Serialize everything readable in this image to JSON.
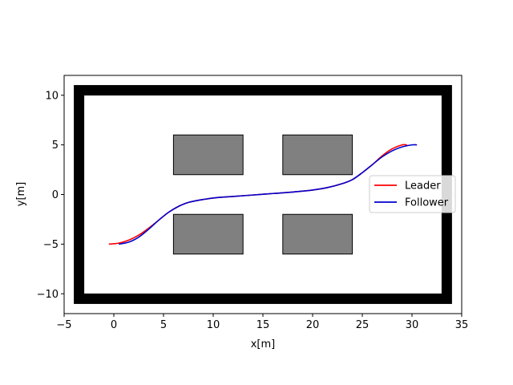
{
  "chart_data": {
    "type": "line",
    "title": "",
    "xlabel": "x[m]",
    "ylabel": "y[m]",
    "xlim": [
      -5,
      35
    ],
    "ylim": [
      -12,
      12
    ],
    "x_ticks": [
      -5,
      0,
      5,
      10,
      15,
      20,
      25,
      30,
      35
    ],
    "y_ticks": [
      -10,
      -5,
      0,
      5,
      10
    ],
    "x_tick_labels": [
      "−5",
      "0",
      "5",
      "10",
      "15",
      "20",
      "25",
      "30",
      "35"
    ],
    "y_tick_labels": [
      "−10",
      "−5",
      "0",
      "5",
      "10"
    ],
    "grid": false,
    "legend_position": "center-right",
    "boundary": {
      "x": [
        -3.5,
        33.5
      ],
      "y": [
        -10.5,
        10.5
      ],
      "color": "#000000"
    },
    "obstacles": [
      {
        "x": [
          6,
          13
        ],
        "y": [
          2,
          6
        ],
        "color": "#808080"
      },
      {
        "x": [
          17,
          24
        ],
        "y": [
          2,
          6
        ],
        "color": "#808080"
      },
      {
        "x": [
          6,
          13
        ],
        "y": [
          -6,
          -2
        ],
        "color": "#808080"
      },
      {
        "x": [
          17,
          24
        ],
        "y": [
          -6,
          -2
        ],
        "color": "#808080"
      }
    ],
    "series": [
      {
        "name": "Leader",
        "color": "#ff0000",
        "x": [
          -0.5,
          0.5,
          1.5,
          2.5,
          3.5,
          4.5,
          5.5,
          6.5,
          7.5,
          9,
          10.5,
          12,
          14,
          16,
          18,
          20,
          21.5,
          23,
          24,
          25,
          26,
          27,
          28,
          29,
          29.5
        ],
        "y": [
          -5,
          -4.9,
          -4.6,
          -4.1,
          -3.4,
          -2.6,
          -1.8,
          -1.2,
          -0.8,
          -0.5,
          -0.3,
          -0.2,
          -0.05,
          0.1,
          0.25,
          0.45,
          0.7,
          1.1,
          1.5,
          2.2,
          3.0,
          3.9,
          4.6,
          5.0,
          5.0
        ]
      },
      {
        "name": "Follower",
        "color": "#0000cc",
        "x": [
          0.5,
          1.5,
          2.5,
          3.5,
          4.5,
          5.5,
          6.5,
          7.5,
          9,
          10.5,
          12,
          14,
          16,
          18,
          20,
          21.5,
          23,
          24,
          25,
          26,
          27,
          28,
          29,
          30,
          30.5
        ],
        "y": [
          -5,
          -4.8,
          -4.3,
          -3.5,
          -2.6,
          -1.8,
          -1.2,
          -0.8,
          -0.5,
          -0.3,
          -0.2,
          -0.05,
          0.1,
          0.25,
          0.45,
          0.7,
          1.1,
          1.5,
          2.2,
          3.0,
          3.8,
          4.4,
          4.8,
          5.0,
          5.0
        ]
      }
    ]
  }
}
